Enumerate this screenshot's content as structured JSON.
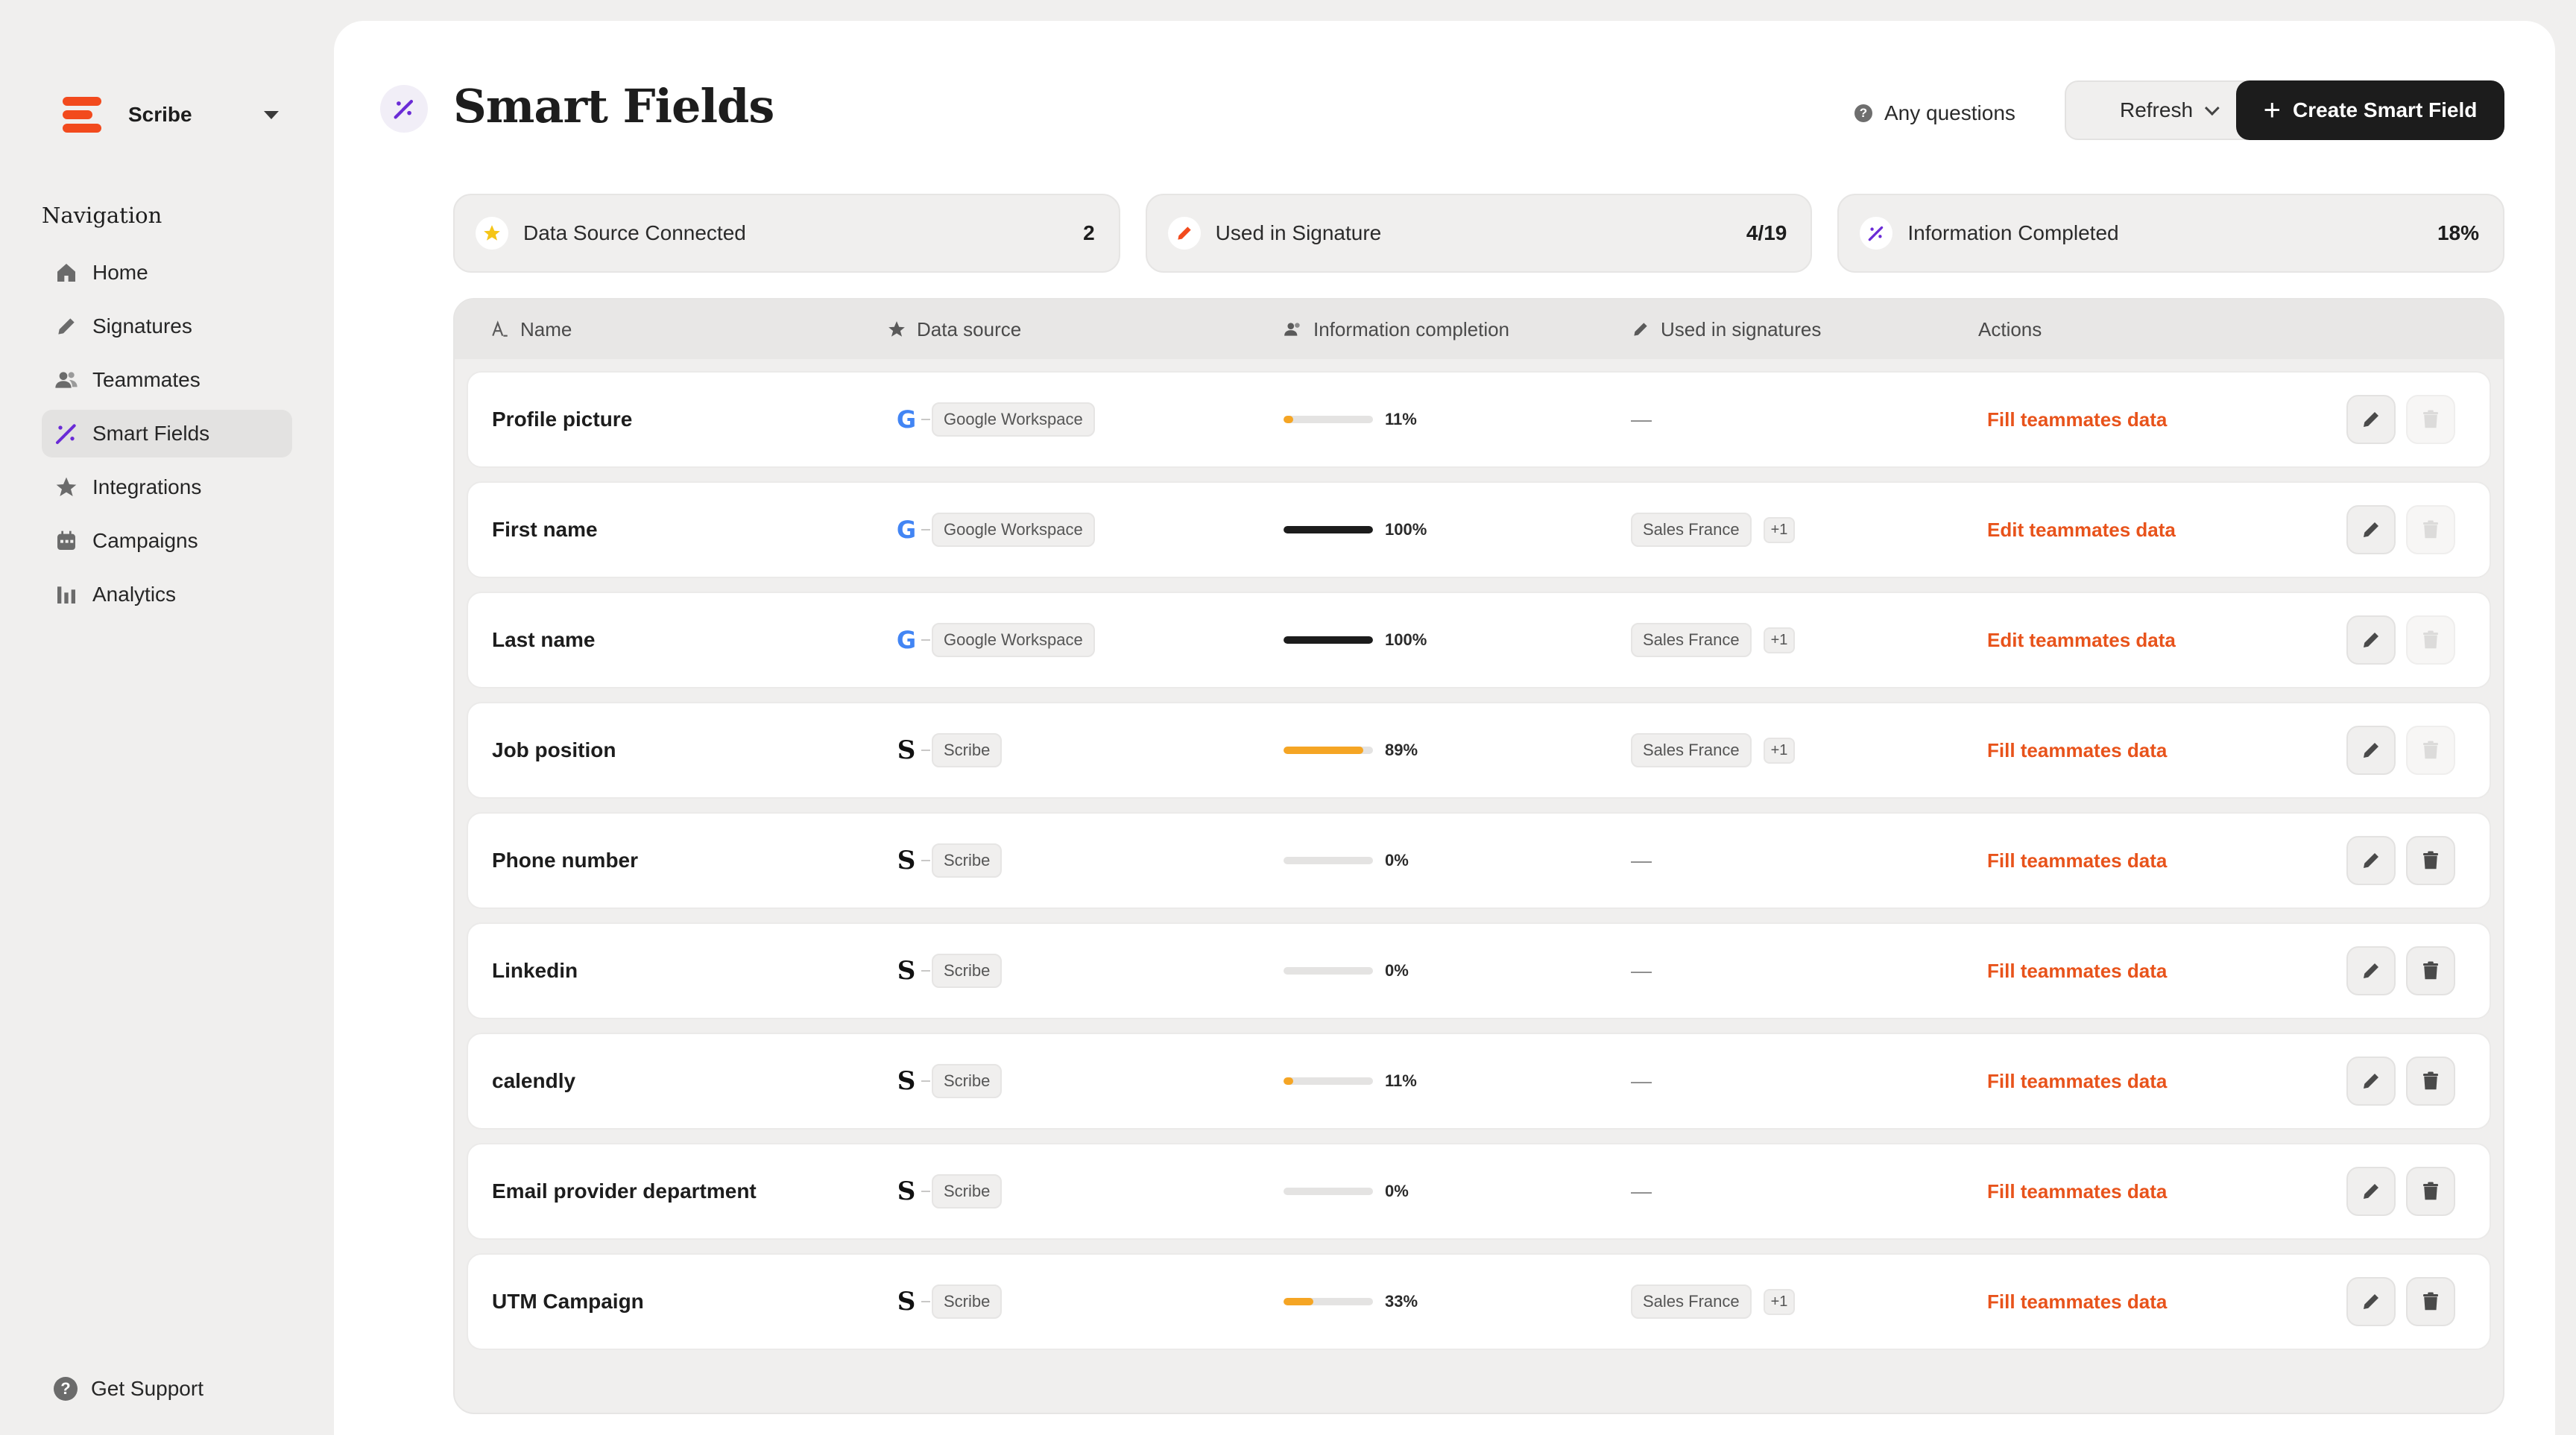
{
  "sidebar": {
    "workspace": "Scribe",
    "heading": "Navigation",
    "items": [
      {
        "label": "Home",
        "icon": "home-icon"
      },
      {
        "label": "Signatures",
        "icon": "pen-icon"
      },
      {
        "label": "Teammates",
        "icon": "users-icon"
      },
      {
        "label": "Smart Fields",
        "icon": "smart-fields-icon",
        "active": true
      },
      {
        "label": "Integrations",
        "icon": "star-icon"
      },
      {
        "label": "Campaigns",
        "icon": "calendar-icon"
      },
      {
        "label": "Analytics",
        "icon": "bar-chart-icon"
      }
    ],
    "support": "Get Support"
  },
  "header": {
    "title": "Smart Fields",
    "questions": "Any questions",
    "refresh": "Refresh",
    "create": "Create Smart Field"
  },
  "stats": [
    {
      "label": "Data Source Connected",
      "value": "2",
      "icon": "star-icon"
    },
    {
      "label": "Used in Signature",
      "value": "4/19",
      "icon": "pen-icon"
    },
    {
      "label": "Information Completed",
      "value": "18%",
      "icon": "smart-fields-icon"
    }
  ],
  "table": {
    "columns": {
      "name": "Name",
      "source": "Data source",
      "completion": "Information completion",
      "used": "Used in signatures",
      "actions": "Actions"
    },
    "rows": [
      {
        "name": "Profile picture",
        "source": "Google Workspace",
        "source_type": "google",
        "pct": 11,
        "pct_label": "11%",
        "used": "—",
        "used_chip": "",
        "used_extra": "",
        "action": "Fill teammates data",
        "deletable": false
      },
      {
        "name": "First name",
        "source": "Google Workspace",
        "source_type": "google",
        "pct": 100,
        "pct_label": "100%",
        "used": "",
        "used_chip": "Sales France",
        "used_extra": "+1",
        "action": "Edit teammates data",
        "deletable": false
      },
      {
        "name": "Last name",
        "source": "Google Workspace",
        "source_type": "google",
        "pct": 100,
        "pct_label": "100%",
        "used": "",
        "used_chip": "Sales France",
        "used_extra": "+1",
        "action": "Edit teammates data",
        "deletable": false
      },
      {
        "name": "Job position",
        "source": "Scribe",
        "source_type": "scribe",
        "pct": 89,
        "pct_label": "89%",
        "used": "",
        "used_chip": "Sales France",
        "used_extra": "+1",
        "action": "Fill teammates data",
        "deletable": false
      },
      {
        "name": "Phone number",
        "source": "Scribe",
        "source_type": "scribe",
        "pct": 0,
        "pct_label": "0%",
        "used": "—",
        "used_chip": "",
        "used_extra": "",
        "action": "Fill teammates data",
        "deletable": true
      },
      {
        "name": "Linkedin",
        "source": "Scribe",
        "source_type": "scribe",
        "pct": 0,
        "pct_label": "0%",
        "used": "—",
        "used_chip": "",
        "used_extra": "",
        "action": "Fill teammates data",
        "deletable": true
      },
      {
        "name": "calendly",
        "source": "Scribe",
        "source_type": "scribe",
        "pct": 11,
        "pct_label": "11%",
        "used": "—",
        "used_chip": "",
        "used_extra": "",
        "action": "Fill teammates data",
        "deletable": true
      },
      {
        "name": "Email provider department",
        "source": "Scribe",
        "source_type": "scribe",
        "pct": 0,
        "pct_label": "0%",
        "used": "—",
        "used_chip": "",
        "used_extra": "",
        "action": "Fill teammates data",
        "deletable": true
      },
      {
        "name": "UTM Campaign",
        "source": "Scribe",
        "source_type": "scribe",
        "pct": 33,
        "pct_label": "33%",
        "used": "",
        "used_chip": "Sales France",
        "used_extra": "+1",
        "action": "Fill teammates data",
        "deletable": true
      }
    ]
  },
  "colors": {
    "accent": "#e8531b",
    "progress_full": "#1c1c1c",
    "progress_partial": "#f5a524",
    "brand": "#f24a1d",
    "smart_fields_icon": "#6a2bd6"
  }
}
